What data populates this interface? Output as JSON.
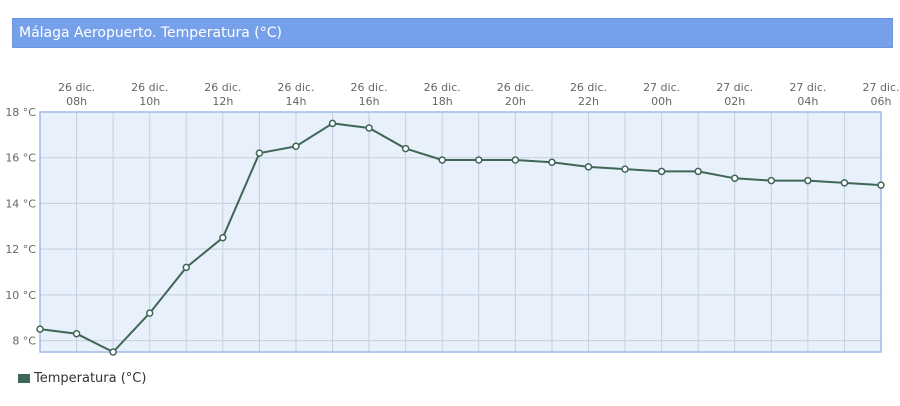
{
  "header": {
    "title": "Málaga Aeropuerto. Temperatura (°C)"
  },
  "colors": {
    "header_bg": "#76a1ea",
    "plot_bg": "#e8f0fb",
    "grid": "#c5cfdd",
    "plot_border": "#9fbbe6",
    "series_line": "#3f6656",
    "marker_fill": "#ffffff"
  },
  "legend": {
    "label": "Temperatura (°C)"
  },
  "chart_data": {
    "type": "line",
    "title": "Málaga Aeropuerto. Temperatura (°C)",
    "xlabel": "",
    "ylabel": "",
    "ylim": [
      7.5,
      18
    ],
    "y_ticks": [
      8,
      10,
      12,
      14,
      16,
      18
    ],
    "y_tick_labels": [
      "8 °C",
      "10 °C",
      "12 °C",
      "14 °C",
      "16 °C",
      "18 °C"
    ],
    "x_ticks": [
      {
        "index": 1,
        "day": "26 dic.",
        "hour": "08h"
      },
      {
        "index": 3,
        "day": "26 dic.",
        "hour": "10h"
      },
      {
        "index": 5,
        "day": "26 dic.",
        "hour": "12h"
      },
      {
        "index": 7,
        "day": "26 dic.",
        "hour": "14h"
      },
      {
        "index": 9,
        "day": "26 dic.",
        "hour": "16h"
      },
      {
        "index": 11,
        "day": "26 dic.",
        "hour": "18h"
      },
      {
        "index": 13,
        "day": "26 dic.",
        "hour": "20h"
      },
      {
        "index": 15,
        "day": "26 dic.",
        "hour": "22h"
      },
      {
        "index": 17,
        "day": "27 dic.",
        "hour": "00h"
      },
      {
        "index": 19,
        "day": "27 dic.",
        "hour": "02h"
      },
      {
        "index": 21,
        "day": "27 dic.",
        "hour": "04h"
      },
      {
        "index": 23,
        "day": "27 dic.",
        "hour": "06h"
      }
    ],
    "grid": true,
    "legend_position": "bottom-left",
    "series": [
      {
        "name": "Temperatura (°C)",
        "values": [
          8.5,
          8.3,
          7.5,
          9.2,
          11.2,
          12.5,
          16.2,
          16.5,
          17.5,
          17.3,
          16.4,
          15.9,
          15.9,
          15.9,
          15.8,
          15.6,
          15.5,
          15.4,
          15.4,
          15.1,
          15.0,
          15.0,
          14.9,
          14.8
        ]
      }
    ]
  }
}
